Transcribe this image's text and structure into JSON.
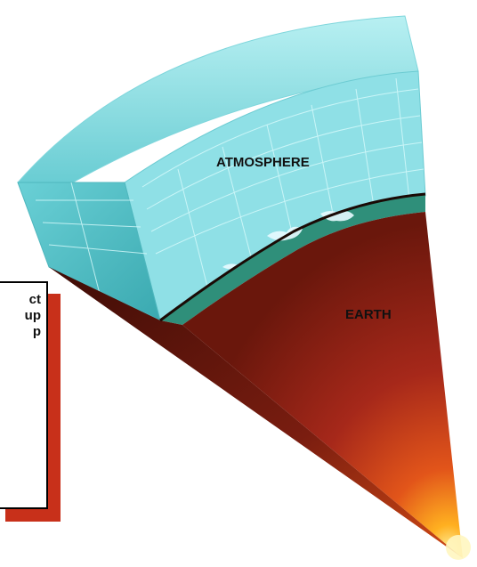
{
  "labels": {
    "atmosphere": "ATMOSPHERE",
    "earth": "EARTH"
  },
  "callout": {
    "text_lines": [
      "ct",
      "up",
      "p"
    ]
  },
  "colors": {
    "atmosphere": "#8fe0e6",
    "atmosphere_dark": "#3aa9b0",
    "ocean_band": "#2f8f7a",
    "earth_outer": "#7a1d10",
    "earth_core": "#ff8a1a",
    "callout_shadow": "#c8301a"
  }
}
